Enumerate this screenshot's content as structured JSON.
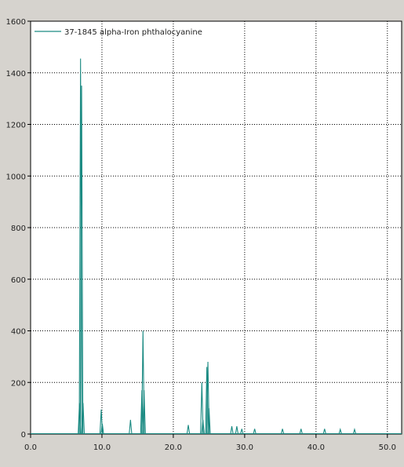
{
  "chart_data": {
    "type": "line",
    "title": "",
    "xlabel": "",
    "ylabel": "",
    "xlim": [
      0.0,
      52.0
    ],
    "ylim": [
      0,
      1600
    ],
    "x_ticks": [
      0.0,
      10.0,
      20.0,
      30.0,
      40.0,
      50.0
    ],
    "x_tick_labels": [
      "0.0",
      "10.0",
      "20.0",
      "30.0",
      "40.0",
      "50.0"
    ],
    "y_ticks": [
      0,
      200,
      400,
      600,
      800,
      1000,
      1200,
      1400,
      1600
    ],
    "y_tick_labels": [
      "0",
      "200",
      "400",
      "600",
      "800",
      "1000",
      "1200",
      "1400",
      "1600"
    ],
    "grid": true,
    "legend_position": "top-left",
    "series": [
      {
        "name": "37-1845 alpha-Iron phthalocyanine",
        "color": "#1a8a82",
        "peaks": [
          {
            "x": 6.85,
            "y": 120
          },
          {
            "x": 7.0,
            "y": 1455
          },
          {
            "x": 7.15,
            "y": 1350
          },
          {
            "x": 7.35,
            "y": 120
          },
          {
            "x": 9.9,
            "y": 95
          },
          {
            "x": 10.05,
            "y": 40
          },
          {
            "x": 14.0,
            "y": 55
          },
          {
            "x": 15.6,
            "y": 170
          },
          {
            "x": 15.75,
            "y": 400
          },
          {
            "x": 15.9,
            "y": 170
          },
          {
            "x": 22.1,
            "y": 35
          },
          {
            "x": 24.0,
            "y": 200
          },
          {
            "x": 24.15,
            "y": 55
          },
          {
            "x": 24.7,
            "y": 260
          },
          {
            "x": 24.85,
            "y": 280
          },
          {
            "x": 25.0,
            "y": 100
          },
          {
            "x": 28.2,
            "y": 30
          },
          {
            "x": 28.9,
            "y": 30
          },
          {
            "x": 29.6,
            "y": 20
          },
          {
            "x": 31.4,
            "y": 20
          },
          {
            "x": 35.3,
            "y": 20
          },
          {
            "x": 37.9,
            "y": 20
          },
          {
            "x": 41.2,
            "y": 20
          },
          {
            "x": 43.4,
            "y": 18
          },
          {
            "x": 45.4,
            "y": 18
          }
        ]
      }
    ]
  }
}
